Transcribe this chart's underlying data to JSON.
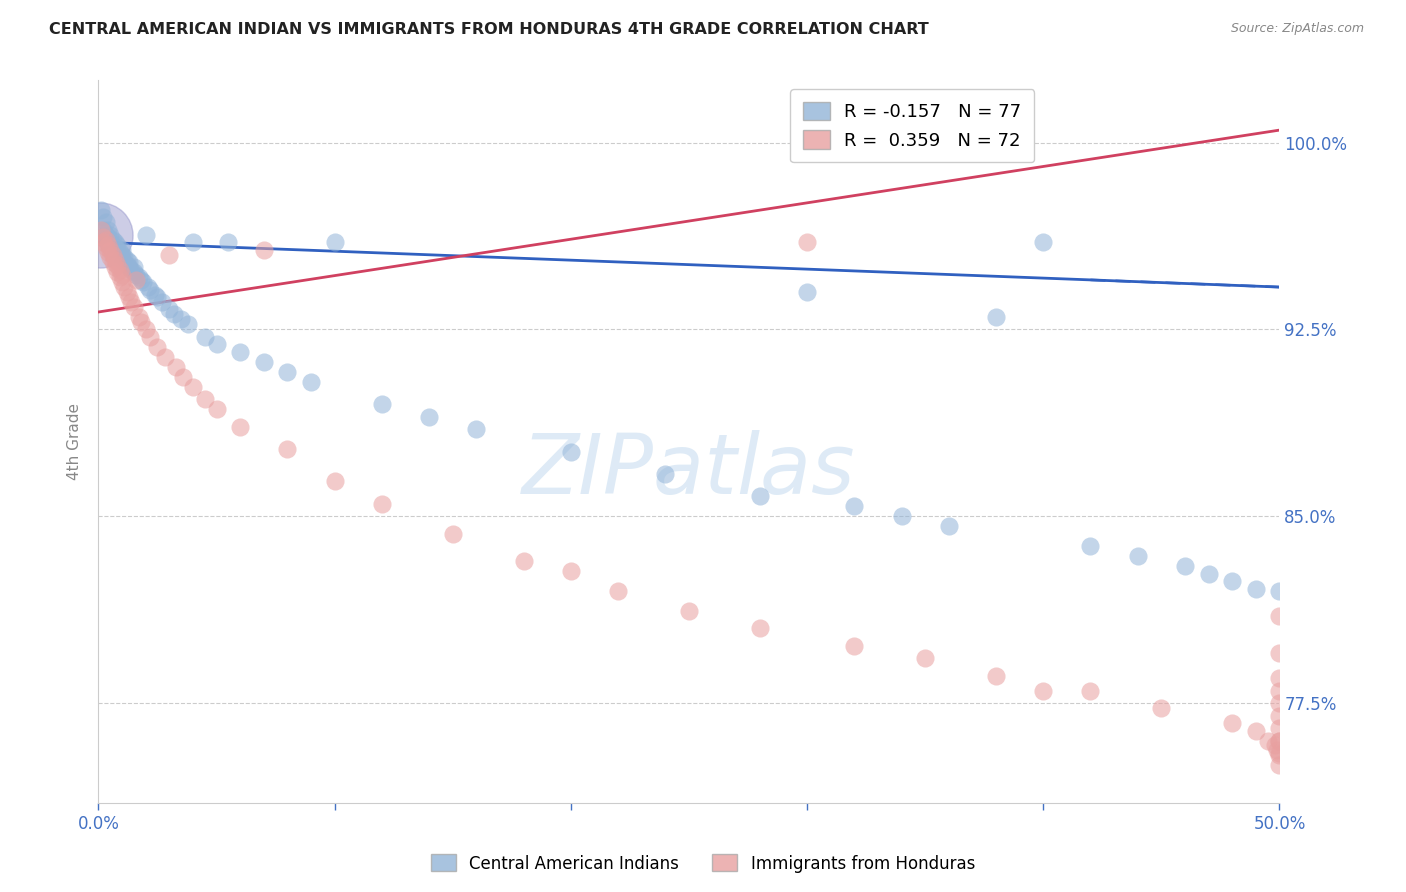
{
  "title": "CENTRAL AMERICAN INDIAN VS IMMIGRANTS FROM HONDURAS 4TH GRADE CORRELATION CHART",
  "source": "Source: ZipAtlas.com",
  "ylabel": "4th Grade",
  "ytick_labels": [
    "77.5%",
    "85.0%",
    "92.5%",
    "100.0%"
  ],
  "ytick_values": [
    0.775,
    0.85,
    0.925,
    1.0
  ],
  "xmin": 0.0,
  "xmax": 0.5,
  "ymin": 0.735,
  "ymax": 1.025,
  "legend_blue_r": "R = -0.157",
  "legend_blue_n": "N = 77",
  "legend_pink_r": "R =  0.359",
  "legend_pink_n": "N = 72",
  "legend_blue_label": "Central American Indians",
  "legend_pink_label": "Immigrants from Honduras",
  "blue_color": "#92b4d8",
  "pink_color": "#e8a0a0",
  "blue_line_color": "#3060c0",
  "pink_line_color": "#d04060",
  "watermark": "ZIPatlas",
  "blue_line_y0": 0.96,
  "blue_line_y1": 0.942,
  "pink_line_y0": 0.932,
  "pink_line_y1": 1.005,
  "blue_x": [
    0.001,
    0.002,
    0.002,
    0.003,
    0.003,
    0.003,
    0.004,
    0.004,
    0.004,
    0.005,
    0.005,
    0.005,
    0.006,
    0.006,
    0.006,
    0.007,
    0.007,
    0.007,
    0.008,
    0.008,
    0.008,
    0.009,
    0.009,
    0.01,
    0.01,
    0.01,
    0.011,
    0.011,
    0.012,
    0.012,
    0.013,
    0.013,
    0.014,
    0.015,
    0.015,
    0.016,
    0.017,
    0.018,
    0.019,
    0.02,
    0.021,
    0.022,
    0.024,
    0.025,
    0.027,
    0.03,
    0.032,
    0.035,
    0.038,
    0.04,
    0.045,
    0.05,
    0.055,
    0.06,
    0.07,
    0.08,
    0.09,
    0.1,
    0.12,
    0.14,
    0.16,
    0.2,
    0.24,
    0.28,
    0.3,
    0.32,
    0.34,
    0.36,
    0.38,
    0.4,
    0.42,
    0.44,
    0.46,
    0.47,
    0.48,
    0.49,
    0.5
  ],
  "blue_y": [
    0.973,
    0.965,
    0.97,
    0.963,
    0.961,
    0.968,
    0.96,
    0.962,
    0.965,
    0.958,
    0.96,
    0.963,
    0.957,
    0.959,
    0.961,
    0.956,
    0.958,
    0.96,
    0.955,
    0.957,
    0.959,
    0.954,
    0.956,
    0.953,
    0.955,
    0.957,
    0.952,
    0.954,
    0.951,
    0.953,
    0.95,
    0.952,
    0.949,
    0.948,
    0.95,
    0.947,
    0.946,
    0.945,
    0.944,
    0.963,
    0.942,
    0.941,
    0.939,
    0.938,
    0.936,
    0.933,
    0.931,
    0.929,
    0.927,
    0.96,
    0.922,
    0.919,
    0.96,
    0.916,
    0.912,
    0.908,
    0.904,
    0.96,
    0.895,
    0.89,
    0.885,
    0.876,
    0.867,
    0.858,
    0.94,
    0.854,
    0.85,
    0.846,
    0.93,
    0.96,
    0.838,
    0.834,
    0.83,
    0.827,
    0.824,
    0.821,
    0.82
  ],
  "pink_x": [
    0.001,
    0.002,
    0.002,
    0.003,
    0.003,
    0.004,
    0.004,
    0.005,
    0.005,
    0.006,
    0.006,
    0.007,
    0.007,
    0.008,
    0.008,
    0.009,
    0.009,
    0.01,
    0.01,
    0.011,
    0.012,
    0.013,
    0.014,
    0.015,
    0.016,
    0.017,
    0.018,
    0.02,
    0.022,
    0.025,
    0.028,
    0.03,
    0.033,
    0.036,
    0.04,
    0.045,
    0.05,
    0.06,
    0.07,
    0.08,
    0.1,
    0.12,
    0.15,
    0.18,
    0.2,
    0.22,
    0.25,
    0.28,
    0.3,
    0.32,
    0.35,
    0.38,
    0.4,
    0.42,
    0.45,
    0.48,
    0.49,
    0.495,
    0.498,
    0.499,
    0.5,
    0.5,
    0.5,
    0.5,
    0.5,
    0.5,
    0.5,
    0.5,
    0.5,
    0.5,
    0.5,
    0.5
  ],
  "pink_y": [
    0.965,
    0.96,
    0.962,
    0.958,
    0.961,
    0.956,
    0.959,
    0.954,
    0.957,
    0.952,
    0.955,
    0.95,
    0.953,
    0.948,
    0.951,
    0.946,
    0.949,
    0.944,
    0.947,
    0.942,
    0.94,
    0.938,
    0.936,
    0.934,
    0.945,
    0.93,
    0.928,
    0.925,
    0.922,
    0.918,
    0.914,
    0.955,
    0.91,
    0.906,
    0.902,
    0.897,
    0.893,
    0.886,
    0.957,
    0.877,
    0.864,
    0.855,
    0.843,
    0.832,
    0.828,
    0.82,
    0.812,
    0.805,
    0.96,
    0.798,
    0.793,
    0.786,
    0.78,
    0.78,
    0.773,
    0.767,
    0.764,
    0.76,
    0.758,
    0.756,
    0.754,
    0.81,
    0.78,
    0.77,
    0.76,
    0.795,
    0.785,
    0.775,
    0.765,
    0.76,
    0.755,
    0.75
  ]
}
